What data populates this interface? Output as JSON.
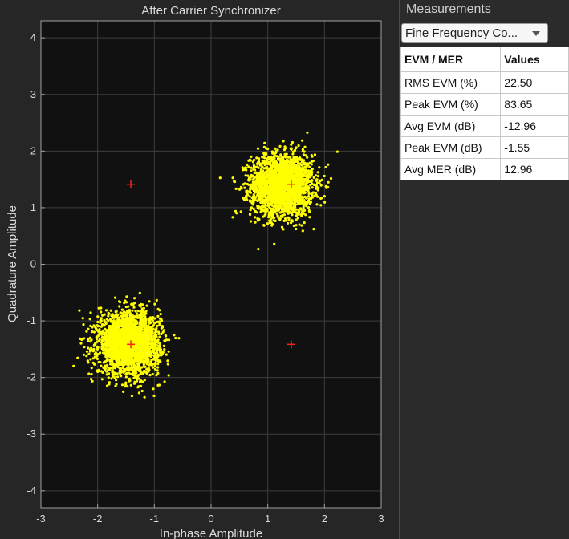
{
  "plot": {
    "title": "After Carrier Synchronizer",
    "xlabel": "In-phase Amplitude",
    "ylabel": "Quadrature Amplitude"
  },
  "measurements": {
    "title": "Measurements",
    "selected": "Fine Frequency Co...",
    "table": {
      "headers": [
        "EVM / MER",
        "Values"
      ],
      "rows": [
        {
          "label": "RMS EVM (%)",
          "value": "22.50"
        },
        {
          "label": "Peak EVM (%)",
          "value": "83.65"
        },
        {
          "label": "Avg EVM (dB)",
          "value": "-12.96"
        },
        {
          "label": "Peak EVM (dB)",
          "value": "-1.55"
        },
        {
          "label": "Avg MER (dB)",
          "value": "12.96"
        }
      ]
    }
  },
  "chart_data": {
    "type": "scatter",
    "title": "After Carrier Synchronizer",
    "xlabel": "In-phase Amplitude",
    "ylabel": "Quadrature Amplitude",
    "xlim": [
      -3,
      3
    ],
    "ylim": [
      -4.3,
      4.3
    ],
    "xticks": [
      -3,
      -2,
      -1,
      0,
      1,
      2,
      3
    ],
    "yticks": [
      -4,
      -3,
      -2,
      -1,
      0,
      1,
      2,
      3,
      4
    ],
    "grid": true,
    "series": [
      {
        "name": "",
        "marker": "dot",
        "color": "#ffff00",
        "clusters": [
          {
            "center": [
              1.25,
              1.4
            ],
            "spread": 0.27,
            "count": 2500
          },
          {
            "center": [
              -1.45,
              -1.4
            ],
            "spread": 0.27,
            "count": 2500
          }
        ]
      },
      {
        "name": "",
        "marker": "plus",
        "color": "#ff2020",
        "x": [
          -1.414,
          1.414,
          -1.414,
          1.414
        ],
        "y": [
          1.414,
          1.414,
          -1.414,
          -1.414
        ]
      }
    ]
  }
}
